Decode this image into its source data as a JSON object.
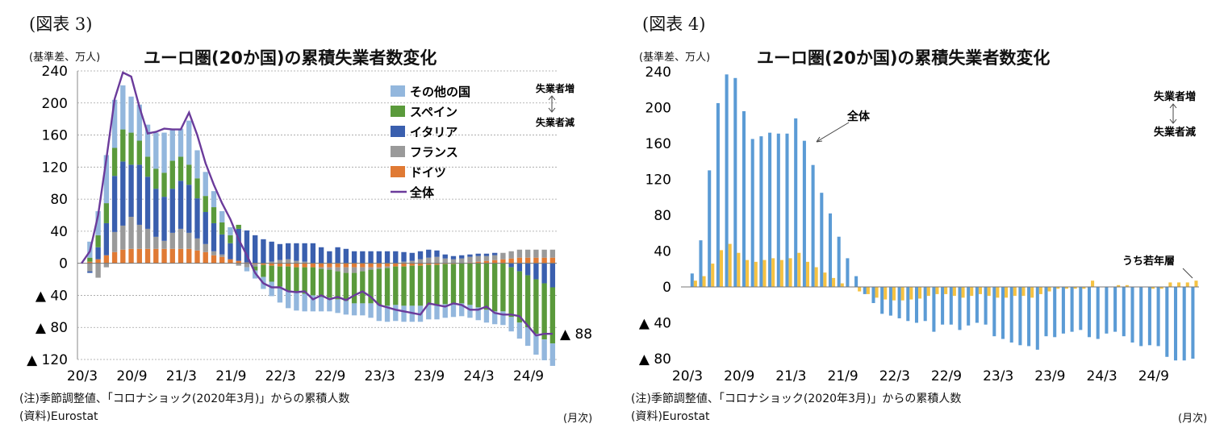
{
  "colors": {
    "other": "#93b7dd",
    "spain": "#5a9a3b",
    "italy": "#3a5fae",
    "france": "#9a9a9a",
    "germany": "#e07a34",
    "total_line": "#6b3b9b",
    "total_bar": "#5b9bd5",
    "youth_bar": "#f5c242"
  },
  "chart_data": [
    {
      "type": "bar",
      "figure_label": "(図表 3)",
      "title": "ユーロ圏(20か国)の累積失業者数変化",
      "unit_label": "(基準差、万人)",
      "xlabel": "(月次)",
      "note": "(注)季節調整値、「コロナショック(2020年3月)」からの累積人数",
      "source": "(資料)Eurostat",
      "ylim": [
        -120,
        240
      ],
      "yticks": [
        {
          "v": 240,
          "t": "240"
        },
        {
          "v": 200,
          "t": "200"
        },
        {
          "v": 160,
          "t": "160"
        },
        {
          "v": 120,
          "t": "120"
        },
        {
          "v": 80,
          "t": "80"
        },
        {
          "v": 40,
          "t": "40"
        },
        {
          "v": 0,
          "t": "0"
        },
        {
          "v": -40,
          "t": "▲ 40"
        },
        {
          "v": -80,
          "t": "▲ 80"
        },
        {
          "v": -120,
          "t": "▲ 120"
        }
      ],
      "xticks": [
        {
          "i": 0,
          "t": "20/3"
        },
        {
          "i": 6,
          "t": "20/9"
        },
        {
          "i": 12,
          "t": "21/3"
        },
        {
          "i": 18,
          "t": "21/9"
        },
        {
          "i": 24,
          "t": "22/3"
        },
        {
          "i": 30,
          "t": "22/9"
        },
        {
          "i": 36,
          "t": "23/3"
        },
        {
          "i": 42,
          "t": "23/9"
        },
        {
          "i": 48,
          "t": "24/3"
        },
        {
          "i": 54,
          "t": "24/9"
        }
      ],
      "legend": [
        "その他の国",
        "スペイン",
        "イタリア",
        "フランス",
        "ドイツ",
        "全体"
      ],
      "annotation_up": "失業者増",
      "annotation_down": "失業者減",
      "end_label": "▲ 88",
      "series": {
        "total": [
          0,
          15,
          60,
          130,
          205,
          238,
          233,
          195,
          162,
          164,
          168,
          167,
          167,
          188,
          160,
          125,
          98,
          75,
          55,
          30,
          10,
          -12,
          -25,
          -30,
          -30,
          -35,
          -36,
          -35,
          -45,
          -40,
          -45,
          -42,
          -46,
          -40,
          -35,
          -42,
          -52,
          -55,
          -58,
          -60,
          -62,
          -64,
          -50,
          -52,
          -54,
          -50,
          -52,
          -58,
          -58,
          -54,
          -62,
          -64,
          -64,
          -66,
          -78,
          -90,
          -88,
          -88
        ],
        "germany": [
          0,
          2,
          5,
          10,
          14,
          17,
          18,
          18,
          18,
          18,
          18,
          18,
          18,
          18,
          16,
          14,
          10,
          8,
          5,
          3,
          1,
          -1,
          -2,
          -3,
          -4,
          -4,
          -5,
          -5,
          -5,
          -5,
          -5,
          -5,
          -5,
          -5,
          -5,
          -5,
          -5,
          -4,
          -4,
          -4,
          -3,
          -3,
          -2,
          -2,
          -1,
          -1,
          0,
          1,
          2,
          3,
          4,
          5,
          6,
          7,
          7,
          7,
          7,
          7
        ],
        "france": [
          0,
          -10,
          -18,
          -5,
          25,
          30,
          40,
          30,
          25,
          15,
          10,
          20,
          25,
          20,
          15,
          10,
          5,
          3,
          0,
          -3,
          -5,
          -3,
          0,
          2,
          4,
          5,
          3,
          2,
          0,
          -2,
          -3,
          -5,
          -7,
          -7,
          -5,
          -3,
          -2,
          -2,
          0,
          2,
          3,
          5,
          7,
          8,
          6,
          5,
          6,
          7,
          7,
          6,
          6,
          8,
          9,
          10,
          10,
          10,
          10,
          10
        ],
        "italy": [
          0,
          -2,
          15,
          40,
          70,
          80,
          65,
          75,
          65,
          60,
          55,
          55,
          60,
          60,
          50,
          40,
          35,
          25,
          20,
          40,
          40,
          35,
          30,
          25,
          20,
          20,
          22,
          23,
          25,
          20,
          15,
          20,
          18,
          15,
          15,
          15,
          15,
          15,
          15,
          12,
          10,
          10,
          10,
          8,
          5,
          4,
          4,
          3,
          3,
          3,
          3,
          0,
          -5,
          -10,
          -15,
          -20,
          -25,
          -30
        ],
        "spain": [
          0,
          5,
          15,
          25,
          35,
          40,
          40,
          30,
          25,
          25,
          30,
          35,
          30,
          25,
          25,
          20,
          20,
          15,
          10,
          5,
          0,
          -5,
          -15,
          -20,
          -25,
          -30,
          -32,
          -33,
          -35,
          -35,
          -35,
          -35,
          -35,
          -38,
          -40,
          -42,
          -45,
          -47,
          -48,
          -49,
          -50,
          -50,
          -50,
          -50,
          -50,
          -50,
          -50,
          -52,
          -55,
          -58,
          -60,
          -60,
          -62,
          -64,
          -65,
          -68,
          -70,
          -70
        ],
        "other": [
          0,
          20,
          30,
          60,
          60,
          55,
          45,
          45,
          40,
          45,
          50,
          40,
          35,
          55,
          35,
          30,
          20,
          14,
          10,
          0,
          -5,
          -10,
          -15,
          -18,
          -20,
          -22,
          -22,
          -22,
          -20,
          -18,
          -17,
          -17,
          -17,
          -15,
          -15,
          -18,
          -20,
          -20,
          -20,
          -20,
          -20,
          -20,
          -18,
          -18,
          -17,
          -16,
          -16,
          -16,
          -16,
          -16,
          -16,
          -17,
          -18,
          -20,
          -23,
          -26,
          -26,
          -28
        ]
      }
    },
    {
      "type": "bar",
      "figure_label": "(図表 4)",
      "title": "ユーロ圏(20か国)の累積失業者数変化",
      "unit_label": "(基準差、万人)",
      "xlabel": "(月次)",
      "note": "(注)季節調整値、「コロナショック(2020年3月)」からの累積人数",
      "source": "(資料)Eurostat",
      "ylim": [
        -80,
        240
      ],
      "yticks": [
        {
          "v": 240,
          "t": "240"
        },
        {
          "v": 200,
          "t": "200"
        },
        {
          "v": 160,
          "t": "160"
        },
        {
          "v": 120,
          "t": "120"
        },
        {
          "v": 80,
          "t": "80"
        },
        {
          "v": 40,
          "t": "40"
        },
        {
          "v": 0,
          "t": "0"
        },
        {
          "v": -40,
          "t": "▲ 40"
        },
        {
          "v": -80,
          "t": "▲ 80"
        }
      ],
      "xticks": [
        {
          "i": 0,
          "t": "20/3"
        },
        {
          "i": 6,
          "t": "20/9"
        },
        {
          "i": 12,
          "t": "21/3"
        },
        {
          "i": 18,
          "t": "21/9"
        },
        {
          "i": 24,
          "t": "22/3"
        },
        {
          "i": 30,
          "t": "22/9"
        },
        {
          "i": 36,
          "t": "23/3"
        },
        {
          "i": 42,
          "t": "23/9"
        },
        {
          "i": 48,
          "t": "24/3"
        },
        {
          "i": 54,
          "t": "24/9"
        }
      ],
      "annotation_up": "失業者増",
      "annotation_down": "失業者減",
      "label_total": "全体",
      "label_youth": "うち若年層",
      "series": {
        "total": [
          0,
          15,
          52,
          130,
          205,
          237,
          233,
          196,
          165,
          168,
          172,
          171,
          171,
          188,
          163,
          136,
          105,
          82,
          56,
          32,
          12,
          -8,
          -18,
          -30,
          -32,
          -35,
          -38,
          -40,
          -38,
          -50,
          -42,
          -42,
          -48,
          -43,
          -40,
          -42,
          -55,
          -58,
          -62,
          -65,
          -66,
          -70,
          -55,
          -56,
          -52,
          -50,
          -48,
          -56,
          -58,
          -52,
          -50,
          -55,
          -62,
          -66,
          -65,
          -66,
          -78,
          -82,
          -82,
          -80
        ],
        "youth": [
          0,
          7,
          12,
          26,
          41,
          48,
          38,
          30,
          28,
          30,
          32,
          30,
          32,
          38,
          28,
          22,
          16,
          10,
          4,
          0,
          -5,
          -8,
          -12,
          -14,
          -15,
          -15,
          -14,
          -13,
          -10,
          -8,
          -8,
          -10,
          -12,
          -10,
          -8,
          -10,
          -12,
          -12,
          -10,
          -10,
          -12,
          -8,
          -5,
          -2,
          -2,
          -2,
          -2,
          7,
          0,
          0,
          2,
          2,
          0,
          0,
          -2,
          -2,
          5,
          5,
          5,
          7
        ]
      }
    }
  ]
}
